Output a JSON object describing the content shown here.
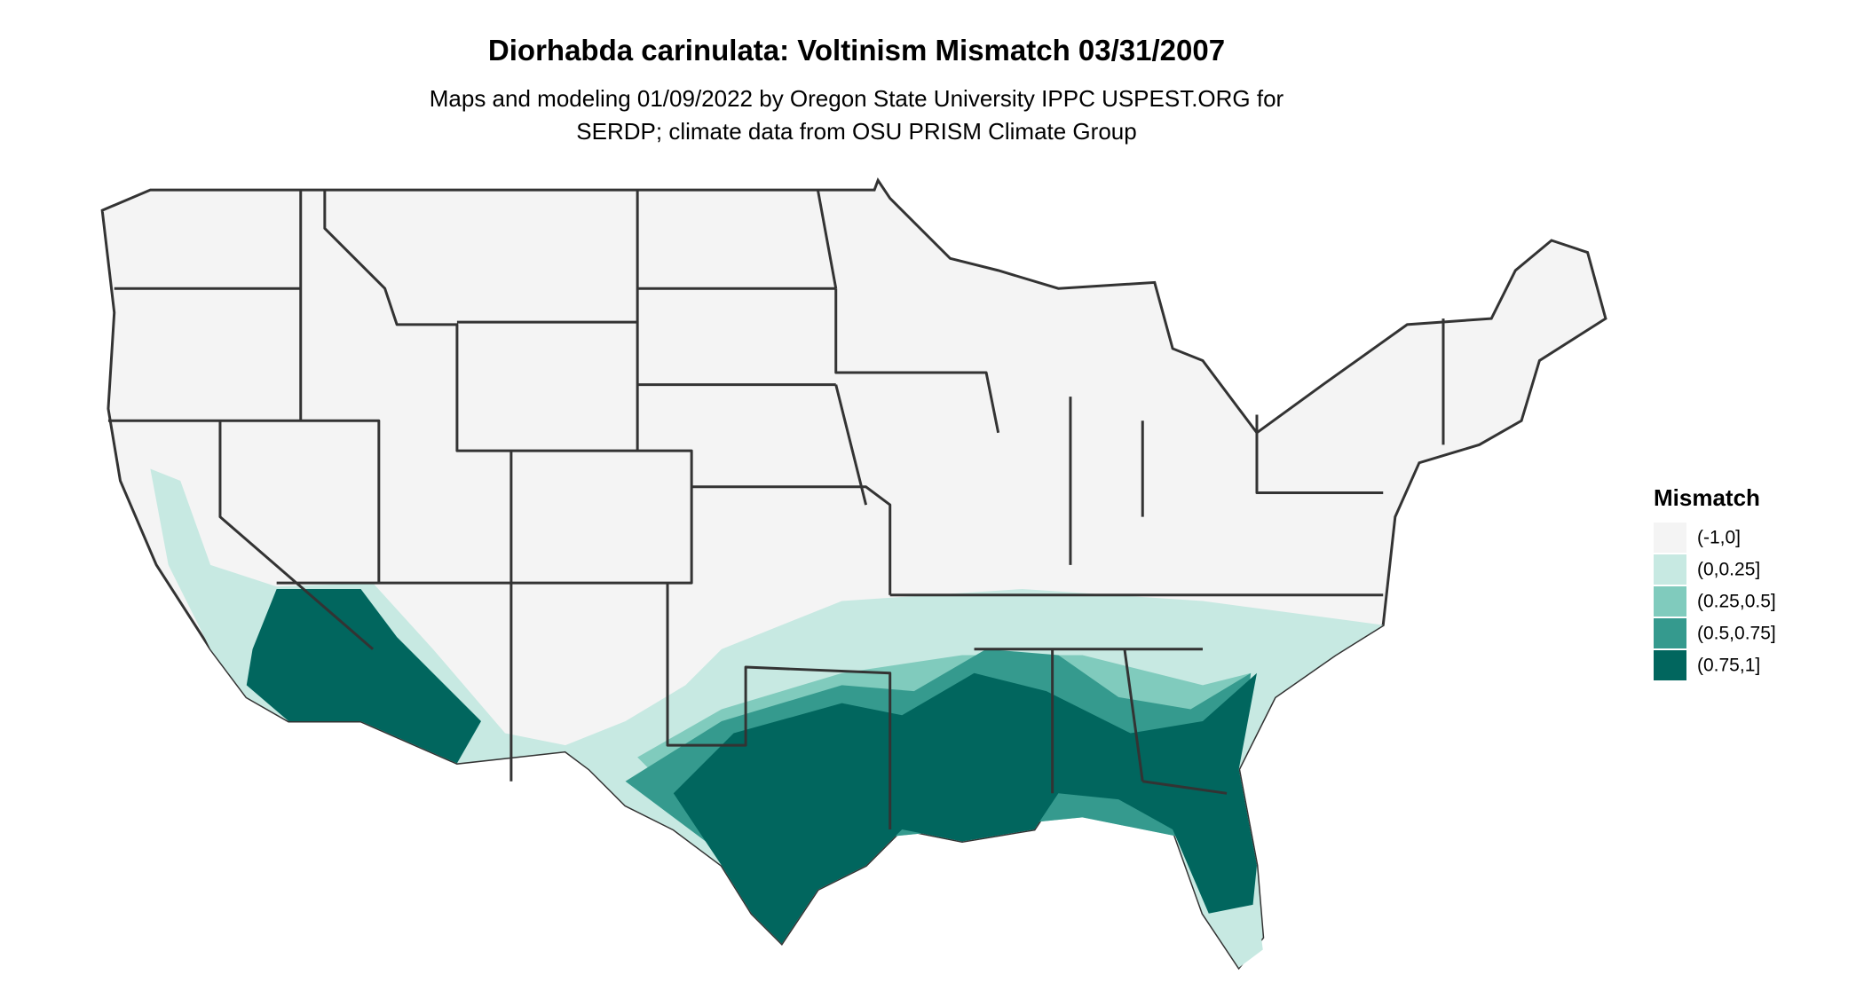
{
  "title": "Diorhabda carinulata: Voltinism Mismatch 03/31/2007",
  "subtitle": [
    "Maps and modeling 01/09/2022 by Oregon State University IPPC USPEST.ORG for",
    "SERDP; climate data from OSU PRISM Climate Group"
  ],
  "legend": {
    "title": "Mismatch",
    "items": [
      {
        "label": "(-1,0]",
        "color": "#f4f4f4"
      },
      {
        "label": "(0,0.25]",
        "color": "#c7e9e2"
      },
      {
        "label": "(0.25,0.5]",
        "color": "#80cbbd"
      },
      {
        "label": "(0.5,0.75]",
        "color": "#359a8e"
      },
      {
        "label": "(0.75,1]",
        "color": "#01665e"
      }
    ]
  }
}
